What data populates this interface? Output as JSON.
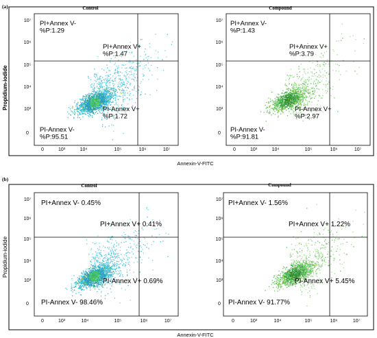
{
  "panels": [
    {
      "label": "(a)",
      "ylabel": "Propidium-iodide",
      "xlabel": "Annexin-V-FITC",
      "charts": [
        {
          "title": "Control",
          "type": "scatter",
          "xticks": [
            "0",
            "10³",
            "10⁴",
            "10⁵",
            "10⁶",
            "10⁷"
          ],
          "yticks": [
            "0",
            "10³",
            "10⁴",
            "10⁵",
            "10⁶",
            "10⁷"
          ],
          "quadrants": [
            {
              "lines": [
                "PI+Annex V-",
                "%P:1.29"
              ]
            },
            {
              "lines": [
                "PI+Annex V+",
                "%P:1.47"
              ]
            },
            {
              "lines": [
                "PI-Annex V+",
                "%P:1.72"
              ]
            },
            {
              "lines": [
                "PI-Annex V-",
                "%P:95.51"
              ]
            }
          ],
          "cluster": {
            "x_log": 4.5,
            "y_log": 3.3,
            "palette": "cyan"
          }
        },
        {
          "title": "Compound",
          "type": "scatter",
          "xticks": [
            "0",
            "10³",
            "10⁴",
            "10⁵",
            "10⁶",
            "10⁷"
          ],
          "yticks": [
            "0",
            "10³",
            "10⁴",
            "10⁵",
            "10⁶",
            "10⁷"
          ],
          "quadrants": [
            {
              "lines": [
                "PI+Annex V-",
                "%P:1.43"
              ]
            },
            {
              "lines": [
                "PI+Annex V+",
                "%P:3.79"
              ]
            },
            {
              "lines": [
                "PI-Annex V+",
                "%P:2.97"
              ]
            },
            {
              "lines": [
                "PI-Annex V-",
                "%P:91.81"
              ]
            }
          ],
          "cluster": {
            "x_log": 4.6,
            "y_log": 3.4,
            "palette": "green"
          }
        }
      ]
    },
    {
      "label": "(b)",
      "ylabel": "Propidium-iodide",
      "xlabel": "Annexin-V-FITC",
      "charts": [
        {
          "title": "Control",
          "type": "scatter",
          "xticks": [
            "0",
            "10³",
            "10⁴",
            "10⁵",
            "10⁶",
            "10⁷"
          ],
          "yticks": [
            "0",
            "10³",
            "10⁴",
            "10⁵",
            "10⁶",
            "10⁷"
          ],
          "quadrants": [
            {
              "lines": [
                "PI+Annex V- 0.45%"
              ]
            },
            {
              "lines": [
                "PI+Annex V+ 0.41%"
              ]
            },
            {
              "lines": [
                "PI-Annex V+ 0.69%"
              ]
            },
            {
              "lines": [
                "PI-Annex V- 98.46%"
              ]
            }
          ],
          "cluster": {
            "x_log": 4.4,
            "y_log": 3.2,
            "palette": "cyan"
          }
        },
        {
          "title": "Compound",
          "type": "scatter",
          "xticks": [
            "0",
            "10³",
            "10⁴",
            "10⁵",
            "10⁶",
            "10⁷"
          ],
          "yticks": [
            "0",
            "10³",
            "10⁴",
            "10⁵",
            "10⁶",
            "10⁷"
          ],
          "quadrants": [
            {
              "lines": [
                "PI+Annex V- 1.56%"
              ]
            },
            {
              "lines": [
                "PI+Annex V+ 1.22%"
              ]
            },
            {
              "lines": [
                "PI-Annex V+ 5.45%"
              ]
            },
            {
              "lines": [
                "PI-Annex V- 91.77%"
              ]
            }
          ],
          "cluster": {
            "x_log": 4.7,
            "y_log": 3.3,
            "palette": "green"
          }
        }
      ]
    }
  ],
  "chart_data": [
    {
      "type": "scatter",
      "title": "Control",
      "xlabel": "Annexin-V-FITC",
      "ylabel": "Propidium-iodide",
      "x_scale": "log",
      "y_scale": "log",
      "quadrant_percentages": {
        "PI+Annex V-": 1.29,
        "PI+Annex V+": 1.47,
        "PI-Annex V+": 1.72,
        "PI-Annex V-": 95.51
      }
    },
    {
      "type": "scatter",
      "title": "Compound",
      "xlabel": "Annexin-V-FITC",
      "ylabel": "Propidium-iodide",
      "x_scale": "log",
      "y_scale": "log",
      "quadrant_percentages": {
        "PI+Annex V-": 1.43,
        "PI+Annex V+": 3.79,
        "PI-Annex V+": 2.97,
        "PI-Annex V-": 91.81
      }
    },
    {
      "type": "scatter",
      "title": "Control",
      "xlabel": "Annexin-V-FITC",
      "ylabel": "Propidium-iodide",
      "x_scale": "log",
      "y_scale": "log",
      "quadrant_percentages": {
        "PI+Annex V-": 0.45,
        "PI+Annex V+": 0.41,
        "PI-Annex V+": 0.69,
        "PI-Annex V-": 98.46
      }
    },
    {
      "type": "scatter",
      "title": "Compound",
      "xlabel": "Annexin-V-FITC",
      "ylabel": "Propidium-iodide",
      "x_scale": "log",
      "y_scale": "log",
      "quadrant_percentages": {
        "PI+Annex V-": 1.56,
        "PI+Annex V+": 1.22,
        "PI-Annex V+": 5.45,
        "PI-Annex V-": 91.77
      }
    }
  ]
}
